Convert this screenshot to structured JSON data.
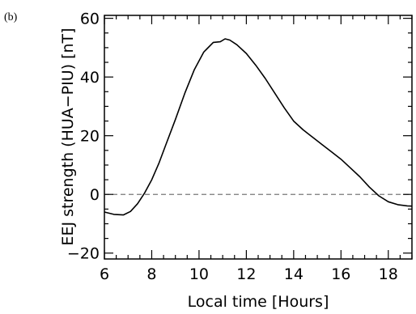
{
  "panel_label": "(b)",
  "chart_data": {
    "type": "line",
    "title": "",
    "xlabel": "Local time [Hours]",
    "ylabel": "EEJ strength (HUA−PIU) [nT]",
    "xlim": [
      6,
      19
    ],
    "ylim": [
      -22,
      61
    ],
    "xticks": [
      6,
      8,
      10,
      12,
      14,
      16,
      18
    ],
    "yticks": [
      -20,
      0,
      20,
      40,
      60
    ],
    "xtick_labels": [
      "6",
      "8",
      "10",
      "12",
      "14",
      "16",
      "18"
    ],
    "ytick_labels": [
      "−20",
      "0",
      "20",
      "40",
      "60"
    ],
    "grid": false,
    "reference_line": {
      "y": 0,
      "style": "dashed",
      "color": "#777777"
    },
    "series": [
      {
        "color": "#000000",
        "x": [
          6.0,
          6.4,
          6.8,
          7.1,
          7.4,
          7.7,
          8.0,
          8.3,
          8.6,
          9.0,
          9.4,
          9.8,
          10.2,
          10.6,
          10.9,
          11.1,
          11.3,
          11.6,
          12.0,
          12.4,
          12.8,
          13.2,
          13.6,
          14.0,
          14.4,
          14.8,
          15.2,
          15.6,
          16.0,
          16.4,
          16.8,
          17.2,
          17.6,
          18.0,
          18.4,
          18.8,
          19.0
        ],
        "y": [
          -6.0,
          -6.8,
          -7.0,
          -5.8,
          -3.2,
          0.5,
          5.0,
          10.5,
          17.0,
          25.5,
          34.5,
          42.5,
          48.5,
          51.8,
          52.0,
          53.0,
          52.6,
          51.0,
          48.0,
          44.0,
          39.5,
          34.5,
          29.5,
          25.0,
          22.0,
          19.5,
          17.0,
          14.5,
          12.0,
          9.0,
          6.0,
          2.5,
          -0.5,
          -2.5,
          -3.5,
          -3.9,
          -4.0
        ]
      }
    ]
  }
}
